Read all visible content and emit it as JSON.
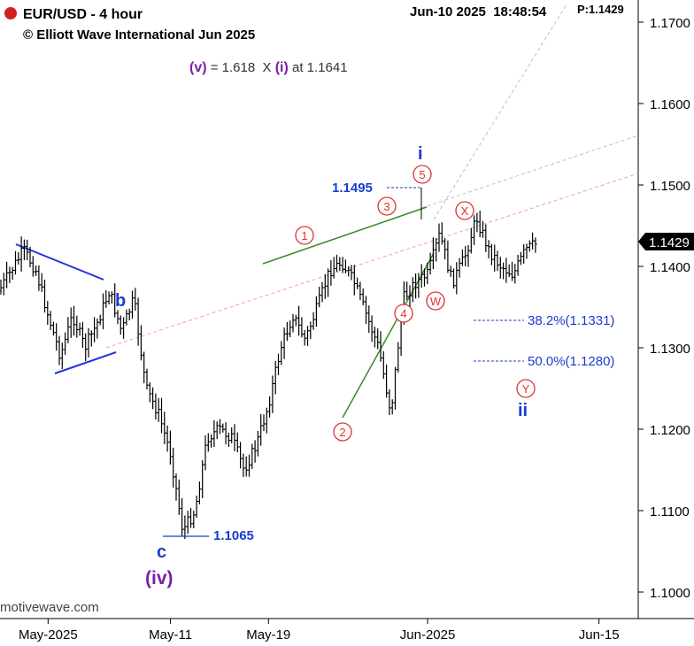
{
  "header": {
    "title": "EUR/USD - 4 hour",
    "copyright": "© Elliott Wave International Jun 2025",
    "datetime": "Jun-10 2025  18:48:54",
    "price_label": "P:1.1429",
    "status_color": "#d42020"
  },
  "projection_note": {
    "wave_v": "(v)",
    "text_a": " = 1.618  X ",
    "wave_i": "(i)",
    "text_b": " at 1.1641"
  },
  "current_price_tag": "1.1429",
  "watermark": "motivewave.com",
  "chart_data": {
    "type": "ohlc",
    "symbol": "EUR/USD",
    "interval": "4 hour",
    "ylim": [
      1.0945,
      1.1745
    ],
    "y_ticks": [
      "1.1700",
      "1.1600",
      "1.1500",
      "1.1400",
      "1.1300",
      "1.1200",
      "1.1100",
      "1.1000"
    ],
    "y_tick_values": [
      1.17,
      1.16,
      1.15,
      1.14,
      1.13,
      1.12,
      1.11,
      1.1
    ],
    "x_ticks": [
      "May-2025",
      "May-11",
      "May-19",
      "Jun-2025",
      "Jun-15"
    ],
    "x_tick_dates": [
      "2025-05-01",
      "2025-05-11",
      "2025-05-19",
      "2025-06-01",
      "2025-06-15"
    ],
    "x_range": [
      "2025-04-27",
      "2025-06-19"
    ],
    "last_bar_date": "2025-06-10",
    "close_path": [
      {
        "date": "2025-04-27",
        "price": 1.137
      },
      {
        "date": "2025-04-28",
        "price": 1.1395
      },
      {
        "date": "2025-04-29",
        "price": 1.142
      },
      {
        "date": "2025-04-30",
        "price": 1.1395
      },
      {
        "date": "2025-05-01",
        "price": 1.134
      },
      {
        "date": "2025-05-02",
        "price": 1.129
      },
      {
        "date": "2025-05-03",
        "price": 1.134
      },
      {
        "date": "2025-05-04",
        "price": 1.13
      },
      {
        "date": "2025-05-05",
        "price": 1.133
      },
      {
        "date": "2025-05-06",
        "price": 1.137
      },
      {
        "date": "2025-05-07",
        "price": 1.132
      },
      {
        "date": "2025-05-08",
        "price": 1.136
      },
      {
        "date": "2025-05-09",
        "price": 1.125
      },
      {
        "date": "2025-05-10",
        "price": 1.122
      },
      {
        "date": "2025-05-11",
        "price": 1.117
      },
      {
        "date": "2025-05-12",
        "price": 1.1075
      },
      {
        "date": "2025-05-13",
        "price": 1.11
      },
      {
        "date": "2025-05-14",
        "price": 1.119
      },
      {
        "date": "2025-05-15",
        "price": 1.12
      },
      {
        "date": "2025-05-16",
        "price": 1.119
      },
      {
        "date": "2025-05-17",
        "price": 1.115
      },
      {
        "date": "2025-05-18",
        "price": 1.118
      },
      {
        "date": "2025-05-19",
        "price": 1.123
      },
      {
        "date": "2025-05-20",
        "price": 1.13
      },
      {
        "date": "2025-05-21",
        "price": 1.134
      },
      {
        "date": "2025-05-22",
        "price": 1.131
      },
      {
        "date": "2025-05-23",
        "price": 1.135
      },
      {
        "date": "2025-05-24",
        "price": 1.1395
      },
      {
        "date": "2025-05-25",
        "price": 1.1405
      },
      {
        "date": "2025-05-26",
        "price": 1.138
      },
      {
        "date": "2025-05-27",
        "price": 1.134
      },
      {
        "date": "2025-05-28",
        "price": 1.13
      },
      {
        "date": "2025-05-29",
        "price": 1.122
      },
      {
        "date": "2025-05-30",
        "price": 1.136
      },
      {
        "date": "2025-05-31",
        "price": 1.138
      },
      {
        "date": "2025-06-01",
        "price": 1.139
      },
      {
        "date": "2025-06-02",
        "price": 1.144
      },
      {
        "date": "2025-06-03",
        "price": 1.138
      },
      {
        "date": "2025-06-04",
        "price": 1.141
      },
      {
        "date": "2025-06-05",
        "price": 1.146
      },
      {
        "date": "2025-06-06",
        "price": 1.142
      },
      {
        "date": "2025-06-07",
        "price": 1.14
      },
      {
        "date": "2025-06-08",
        "price": 1.139
      },
      {
        "date": "2025-06-09",
        "price": 1.142
      },
      {
        "date": "2025-06-10",
        "price": 1.1429
      }
    ],
    "wave_labels": [
      {
        "label": "b",
        "date": "2025-05-09",
        "price": 1.1375,
        "style": "blue"
      },
      {
        "label": "c",
        "date": "2025-05-13",
        "price": 1.1045,
        "style": "blue"
      },
      {
        "label": "(iv)",
        "date": "2025-05-13",
        "price": 1.1,
        "style": "purple"
      },
      {
        "label": "i",
        "date": "2025-06-05",
        "price": 1.153,
        "style": "blue"
      },
      {
        "label": "ii",
        "date": "2025-06-14",
        "price": 1.1218,
        "style": "blue"
      }
    ],
    "circled_labels": [
      {
        "label": "1",
        "date": "2025-05-22",
        "price": 1.1428
      },
      {
        "label": "2",
        "date": "2025-05-29",
        "price": 1.119
      },
      {
        "label": "3",
        "date": "2025-06-02",
        "price": 1.1472
      },
      {
        "label": "4",
        "date": "2025-06-03",
        "price": 1.1355
      },
      {
        "label": "5",
        "date": "2025-06-05",
        "price": 1.1515
      },
      {
        "label": "W",
        "date": "2025-06-06",
        "price": 1.1365
      },
      {
        "label": "X",
        "date": "2025-06-08",
        "price": 1.1465
      },
      {
        "label": "Y",
        "date": "2025-06-14",
        "price": 1.1245
      }
    ],
    "price_levels": [
      {
        "label": "1.1495",
        "price": 1.1495
      },
      {
        "label": "1.1065",
        "price": 1.1065
      }
    ],
    "fib_levels": [
      {
        "label": "38.2%(1.1331)",
        "price": 1.1331
      },
      {
        "label": "50.0%(1.1280)",
        "price": 1.128
      }
    ],
    "colors": {
      "bars": "#000000",
      "wave_blue": "#1a3ccf",
      "wave_purple": "#7a1fa2",
      "circle_red": "#e03030",
      "channel_green": "#3a8a2a",
      "triangle_blue": "#2233dd",
      "channel_pink_dashed": "#f0a0a8",
      "channel_grey_dashed": "#c0c0c0"
    },
    "grid": false
  }
}
